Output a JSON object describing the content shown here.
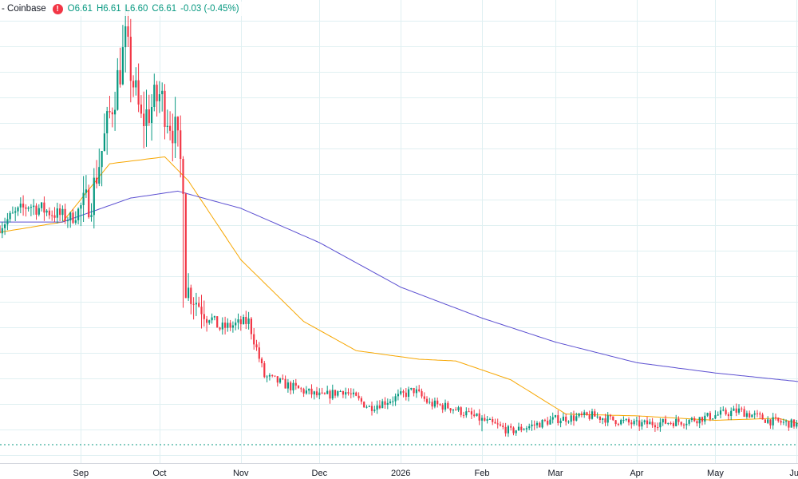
{
  "header": {
    "symbol": "- Coinbase",
    "alert_icon": "!",
    "open": "O6.61",
    "high": "H6.61",
    "low": "L6.60",
    "close": "C6.61",
    "change": "-0.03 (-0.45%)"
  },
  "colors": {
    "up": "#089981",
    "down": "#f23645",
    "ma_short": "#f7a600",
    "ma_long": "#5b4fd1",
    "grid": "#e0f0f2"
  },
  "chart_data": {
    "type": "candlestick",
    "x_tick_labels": [
      "Sep",
      "Oct",
      "Nov",
      "Dec",
      "2026",
      "Feb",
      "Mar",
      "Apr",
      "May",
      "Jun"
    ],
    "y_range": [
      6.4,
      19.2
    ],
    "last_close": 6.61,
    "grid": true,
    "series": [
      {
        "name": "",
        "kind": "ohlc",
        "keypoints_dates": [
          "2025-08-01",
          "2025-08-12",
          "2025-08-28",
          "2025-09-05",
          "2025-09-18",
          "2025-09-24",
          "2025-10-01",
          "2025-10-07",
          "2025-10-10",
          "2025-10-11",
          "2025-10-15",
          "2025-10-24",
          "2025-11-04",
          "2025-11-10",
          "2025-11-20",
          "2025-12-02",
          "2025-12-10",
          "2025-12-20",
          "2025-12-31",
          "2026-01-06",
          "2026-01-12",
          "2026-01-20",
          "2026-02-02",
          "2026-02-12",
          "2026-03-01",
          "2026-03-15",
          "2026-04-01",
          "2026-04-20",
          "2026-05-10",
          "2026-05-22",
          "2026-06-01",
          "2026-06-05",
          "2026-06-08"
        ],
        "keypoints_close": [
          13.0,
          13.6,
          13.2,
          13.8,
          18.3,
          16.0,
          16.8,
          15.7,
          14.4,
          11.2,
          10.8,
          10.0,
          10.2,
          8.6,
          8.3,
          8.0,
          8.2,
          7.7,
          8.0,
          8.2,
          7.8,
          7.7,
          7.3,
          7.0,
          7.35,
          7.45,
          7.2,
          7.3,
          7.6,
          7.3,
          7.2,
          6.8,
          6.61
        ]
      },
      {
        "name": "",
        "kind": "line",
        "color_ref": "ma_short",
        "dates": [
          "2025-08-01",
          "2025-08-25",
          "2025-09-12",
          "2025-10-03",
          "2025-10-12",
          "2025-11-01",
          "2025-11-25",
          "2025-12-15",
          "2026-01-08",
          "2026-01-22",
          "2026-02-12",
          "2026-03-05",
          "2026-04-01",
          "2026-05-01",
          "2026-05-25",
          "2026-06-08"
        ],
        "values": [
          12.8,
          13.1,
          14.8,
          15.0,
          14.3,
          12.0,
          10.2,
          9.35,
          9.1,
          9.05,
          8.5,
          7.5,
          7.45,
          7.32,
          7.38,
          7.1
        ]
      },
      {
        "name": "",
        "kind": "line",
        "color_ref": "ma_long",
        "dates": [
          "2025-08-01",
          "2025-08-25",
          "2025-09-20",
          "2025-10-08",
          "2025-11-01",
          "2025-12-01",
          "2026-01-01",
          "2026-02-01",
          "2026-03-01",
          "2026-04-01",
          "2026-05-01",
          "2026-06-08"
        ],
        "values": [
          13.1,
          13.1,
          13.8,
          14.0,
          13.5,
          12.5,
          11.2,
          10.3,
          9.6,
          9.0,
          8.7,
          8.4
        ]
      }
    ]
  }
}
